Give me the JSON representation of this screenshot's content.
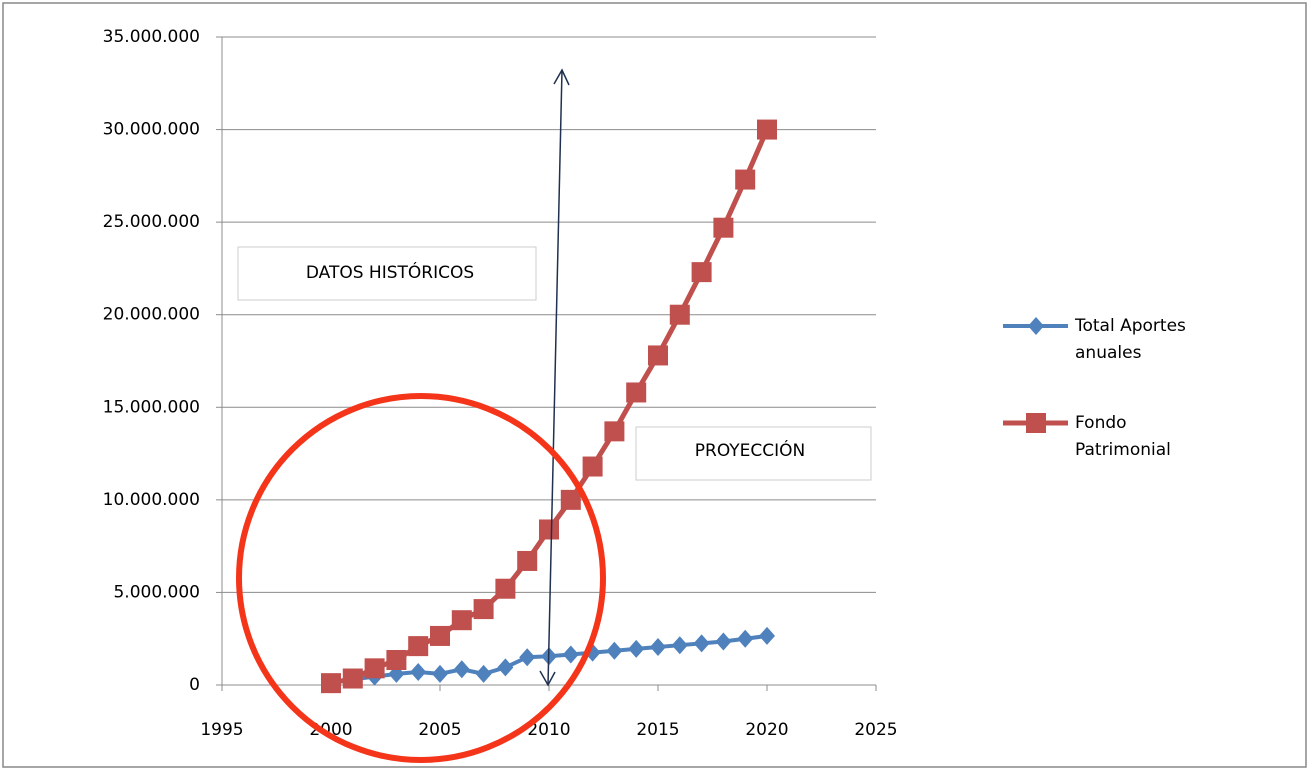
{
  "chart_data": {
    "type": "line",
    "x": [
      2000,
      2001,
      2002,
      2003,
      2004,
      2005,
      2006,
      2007,
      2008,
      2009,
      2010,
      2011,
      2012,
      2013,
      2014,
      2015,
      2016,
      2017,
      2018,
      2019,
      2020
    ],
    "series": [
      {
        "name": "Total Aportes anuales",
        "color": "#4f81bd",
        "marker": "diamond",
        "values": [
          100000,
          300000,
          450000,
          600000,
          700000,
          600000,
          850000,
          600000,
          950000,
          1500000,
          1550000,
          1650000,
          1750000,
          1850000,
          1950000,
          2050000,
          2150000,
          2250000,
          2350000,
          2500000,
          2650000
        ]
      },
      {
        "name": "Fondo Patrimonial",
        "color": "#c0504d",
        "marker": "square",
        "values": [
          100000,
          350000,
          900000,
          1350000,
          2100000,
          2650000,
          3500000,
          4100000,
          5200000,
          6700000,
          8400000,
          10000000,
          11800000,
          13700000,
          15800000,
          17800000,
          20000000,
          22300000,
          24700000,
          27300000,
          30000000
        ]
      }
    ],
    "xlim": [
      1995,
      2025
    ],
    "xticks": [
      1995,
      2000,
      2005,
      2010,
      2015,
      2020,
      2025
    ],
    "ylim": [
      0,
      35000000
    ],
    "yticks": [
      0,
      {
        "value": 5000000,
        "label": "5.000.000"
      },
      {
        "value": 10000000,
        "label": "10.000.000"
      },
      {
        "value": 15000000,
        "label": "15.000.000"
      },
      {
        "value": 20000000,
        "label": "20.000.000"
      },
      {
        "value": 25000000,
        "label": "25.000.000"
      },
      {
        "value": 30000000,
        "label": "30.000.000"
      },
      {
        "value": 35000000,
        "label": "35.000.000"
      }
    ],
    "grid": true,
    "legend": "right",
    "annotations": [
      "DATOS HISTÓRICOS",
      "PROYECCIÓN"
    ]
  }
}
